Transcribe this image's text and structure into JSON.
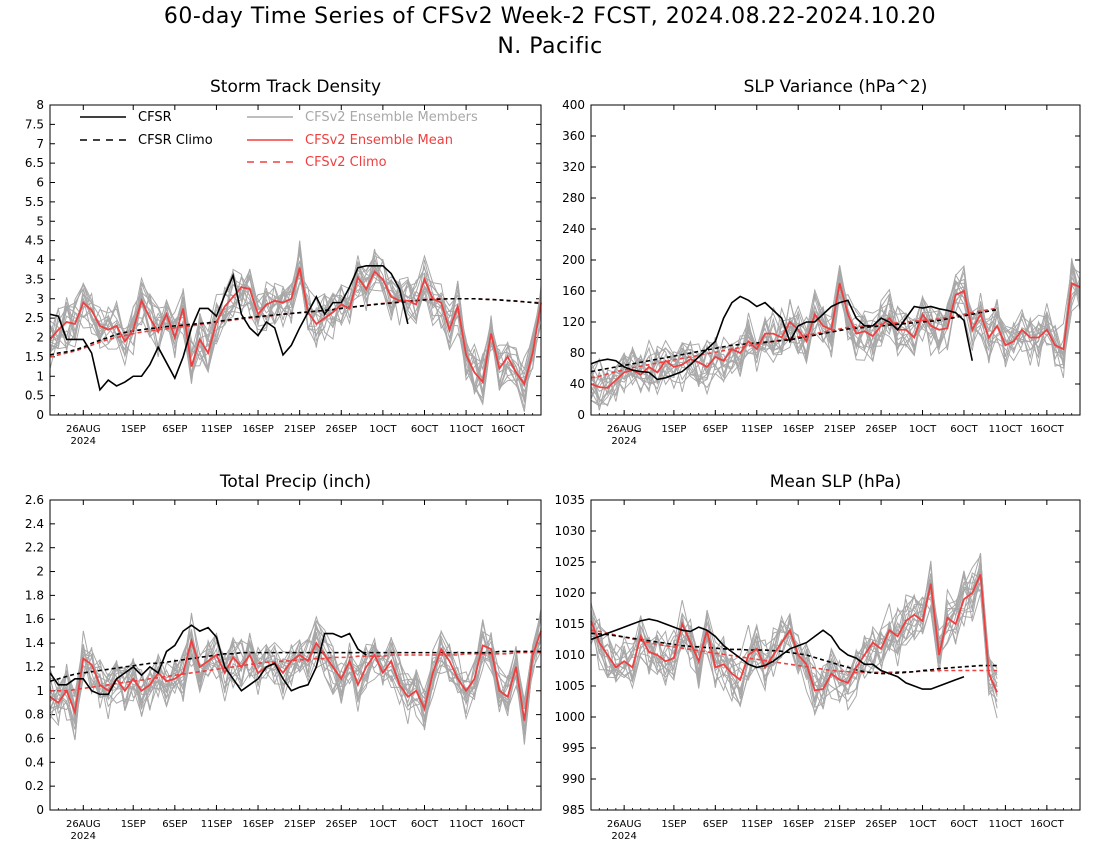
{
  "title_line1": "60-day Time Series of CFSv2 Week-2 FCST, 2024.08.22-2024.10.20",
  "title_line2": "N. Pacific",
  "colors": {
    "cfsr": "#000000",
    "cfsr_climo": "#000000",
    "members": "#a8a8a8",
    "ens_mean": "#ee4040",
    "cfsv2_climo": "#ee4040"
  },
  "legend": [
    {
      "label": "CFSR",
      "style": "solid",
      "color": "#000000"
    },
    {
      "label": "CFSR Climo",
      "style": "dashed",
      "color": "#000000"
    },
    {
      "label": "CFSv2 Ensemble Members",
      "style": "solid",
      "color": "#a8a8a8"
    },
    {
      "label": "CFSv2 Ensemble Mean",
      "style": "solid",
      "color": "#ee4040"
    },
    {
      "label": "CFSv2 Climo",
      "style": "dashed",
      "color": "#ee4040"
    }
  ],
  "x_ticks": [
    {
      "day": 4,
      "label": "26AUG",
      "sub": "2024"
    },
    {
      "day": 10,
      "label": "1SEP"
    },
    {
      "day": 15,
      "label": "6SEP"
    },
    {
      "day": 20,
      "label": "11SEP"
    },
    {
      "day": 25,
      "label": "16SEP"
    },
    {
      "day": 30,
      "label": "21SEP"
    },
    {
      "day": 35,
      "label": "26SEP"
    },
    {
      "day": 40,
      "label": "1OCT"
    },
    {
      "day": 45,
      "label": "6OCT"
    },
    {
      "day": 50,
      "label": "11OCT"
    },
    {
      "day": 55,
      "label": "16OCT"
    }
  ],
  "chart_data": [
    {
      "type": "line",
      "title": "Storm Track Density",
      "xlabel": "",
      "ylabel": "",
      "x_start": "2024-08-22",
      "x_end": "2024-10-20",
      "ylim": [
        0,
        8
      ],
      "yticks": [
        "0",
        "0.5",
        "1",
        "1.5",
        "2",
        "2.5",
        "3",
        "3.5",
        "4",
        "4.5",
        "5",
        "5.5",
        "6",
        "6.5",
        "7",
        "7.5",
        "8"
      ],
      "legend_position": "top",
      "series": [
        {
          "name": "CFSR",
          "values": [
            2.6,
            2.55,
            1.95,
            1.95,
            1.95,
            1.6,
            0.65,
            0.9,
            0.75,
            0.85,
            1.0,
            1.0,
            1.3,
            1.75,
            1.35,
            0.95,
            1.5,
            2.25,
            2.75,
            2.75,
            2.55,
            3.1,
            3.6,
            2.6,
            2.25,
            2.05,
            2.4,
            2.25,
            1.55,
            1.8,
            2.25,
            2.65,
            3.05,
            2.6,
            2.9,
            2.9,
            3.3,
            3.8,
            3.85,
            3.85,
            3.85,
            3.65,
            3.25,
            2.35
          ]
        },
        {
          "name": "CFSR Climo",
          "values": [
            1.55,
            1.6,
            1.63,
            1.68,
            1.75,
            1.85,
            1.93,
            2.0,
            2.08,
            2.13,
            2.17,
            2.2,
            2.23,
            2.25,
            2.28,
            2.3,
            2.32,
            2.34,
            2.36,
            2.38,
            2.41,
            2.44,
            2.47,
            2.5,
            2.52,
            2.54,
            2.56,
            2.58,
            2.6,
            2.62,
            2.64,
            2.66,
            2.68,
            2.7,
            2.72,
            2.75,
            2.78,
            2.8,
            2.83,
            2.85,
            2.87,
            2.89,
            2.91,
            2.93,
            2.95,
            2.97,
            2.98,
            2.99,
            3.0,
            3.0,
            3.0,
            3.0,
            2.99,
            2.98,
            2.97,
            2.95,
            2.94,
            2.92,
            2.9,
            2.88
          ]
        },
        {
          "name": "CFSv2 Ensemble Mean",
          "values": [
            1.95,
            2.2,
            2.4,
            2.35,
            2.9,
            2.7,
            2.3,
            2.2,
            2.3,
            1.9,
            2.2,
            2.95,
            2.5,
            2.15,
            2.6,
            2.0,
            2.75,
            1.25,
            1.95,
            1.6,
            2.4,
            2.8,
            3.05,
            3.3,
            3.25,
            2.6,
            2.85,
            2.95,
            2.9,
            3.0,
            3.8,
            2.65,
            2.35,
            2.5,
            2.65,
            2.85,
            2.75,
            3.55,
            3.25,
            3.7,
            3.5,
            3.05,
            2.95,
            2.95,
            2.85,
            3.5,
            3.0,
            2.9,
            2.2,
            2.8,
            1.55,
            1.1,
            0.85,
            2.1,
            1.2,
            1.5,
            1.1,
            0.8,
            1.6,
            2.9
          ]
        },
        {
          "name": "CFSv2 Climo",
          "values": [
            1.5,
            1.55,
            1.6,
            1.65,
            1.72,
            1.8,
            1.88,
            1.95,
            2.0,
            2.05,
            2.1,
            2.14,
            2.17,
            2.2,
            2.22,
            2.25,
            2.28,
            2.3,
            2.33,
            2.36,
            2.39,
            2.42,
            2.45,
            2.48,
            2.5,
            2.52,
            2.55,
            2.57,
            2.6,
            2.62,
            2.64,
            2.66,
            2.68,
            2.7,
            2.72,
            2.75,
            2.78,
            2.8,
            2.83,
            2.86,
            2.88,
            2.9,
            2.92,
            2.94,
            2.96,
            2.98,
            3.0,
            3.0,
            3.0,
            3.0,
            3.0,
            3.0,
            2.99,
            2.98,
            2.97,
            2.96,
            2.94,
            2.92,
            2.91,
            2.9
          ]
        }
      ]
    },
    {
      "type": "line",
      "title": "SLP Variance (hPa^2)",
      "xlabel": "",
      "ylabel": "",
      "x_start": "2024-08-22",
      "x_end": "2024-10-20",
      "ylim": [
        0,
        400
      ],
      "yticks": [
        "0",
        "40",
        "80",
        "120",
        "160",
        "200",
        "240",
        "280",
        "320",
        "360",
        "400"
      ],
      "series": [
        {
          "name": "CFSR",
          "values": [
            66,
            70,
            72,
            70,
            62,
            58,
            56,
            55,
            46,
            48,
            52,
            56,
            65,
            75,
            85,
            95,
            125,
            145,
            153,
            148,
            140,
            145,
            135,
            125,
            95,
            115,
            120,
            120,
            130,
            140,
            145,
            148,
            125,
            115,
            115,
            125,
            120,
            110,
            125,
            140,
            138,
            140,
            137,
            135,
            132,
            122,
            70
          ]
        },
        {
          "name": "CFSR Climo",
          "values": [
            56,
            58,
            60,
            62,
            64,
            66,
            68,
            70,
            72,
            74,
            76,
            78,
            80,
            82,
            84,
            86,
            88,
            90,
            91,
            92,
            93,
            94,
            95,
            96,
            97,
            99,
            101,
            103,
            105,
            107,
            109,
            111,
            112,
            113,
            114,
            115,
            116,
            117,
            118,
            119,
            120,
            121,
            122,
            124,
            126,
            128,
            130,
            132,
            134,
            136
          ]
        },
        {
          "name": "CFSv2 Ensemble Mean",
          "values": [
            40,
            36,
            35,
            45,
            55,
            58,
            52,
            62,
            55,
            70,
            62,
            65,
            72,
            68,
            62,
            75,
            70,
            85,
            80,
            95,
            85,
            105,
            105,
            100,
            120,
            110,
            95,
            130,
            115,
            110,
            170,
            130,
            105,
            108,
            102,
            115,
            125,
            110,
            110,
            100,
            130,
            115,
            110,
            112,
            155,
            160,
            110,
            130,
            100,
            115,
            90,
            95,
            110,
            100,
            100,
            110,
            90,
            85,
            170,
            165
          ]
        },
        {
          "name": "CFSv2 Climo",
          "values": [
            48,
            50,
            53,
            56,
            58,
            61,
            63,
            65,
            67,
            69,
            71,
            73,
            75,
            77,
            79,
            81,
            83,
            85,
            87,
            89,
            91,
            93,
            95,
            97,
            99,
            101,
            103,
            105,
            107,
            109,
            111,
            113,
            114,
            115,
            116,
            117,
            118,
            119,
            120,
            121,
            122,
            123,
            124,
            126,
            128,
            130,
            132,
            134,
            136,
            138
          ]
        }
      ]
    },
    {
      "type": "line",
      "title": "Total Precip (inch)",
      "xlabel": "",
      "ylabel": "",
      "x_start": "2024-08-22",
      "x_end": "2024-10-20",
      "ylim": [
        0,
        2.6
      ],
      "yticks": [
        "0",
        "0.2",
        "0.4",
        "0.6",
        "0.8",
        "1",
        "1.2",
        "1.4",
        "1.6",
        "1.8",
        "2",
        "2.2",
        "2.4",
        "2.6"
      ],
      "series": [
        {
          "name": "CFSR",
          "values": [
            1.15,
            1.05,
            1.05,
            1.1,
            1.1,
            1.0,
            0.97,
            0.97,
            1.1,
            1.15,
            1.2,
            1.13,
            1.2,
            1.15,
            1.33,
            1.38,
            1.5,
            1.55,
            1.5,
            1.53,
            1.45,
            1.2,
            1.1,
            1.0,
            1.05,
            1.1,
            1.2,
            1.23,
            1.1,
            1.0,
            1.03,
            1.05,
            1.2,
            1.48,
            1.48,
            1.45,
            1.48,
            1.35,
            1.3
          ]
        },
        {
          "name": "CFSR Climo",
          "values": [
            1.08,
            1.1,
            1.12,
            1.14,
            1.15,
            1.16,
            1.17,
            1.18,
            1.19,
            1.2,
            1.21,
            1.22,
            1.23,
            1.23,
            1.24,
            1.25,
            1.26,
            1.27,
            1.28,
            1.29,
            1.3,
            1.31,
            1.31,
            1.32,
            1.32,
            1.32,
            1.32,
            1.32,
            1.32,
            1.32,
            1.32,
            1.32,
            1.32,
            1.32,
            1.32,
            1.32,
            1.32,
            1.32,
            1.32,
            1.32,
            1.32,
            1.32,
            1.32,
            1.32,
            1.32,
            1.32,
            1.32,
            1.32,
            1.32,
            1.32,
            1.32,
            1.32,
            1.32,
            1.32,
            1.33,
            1.33,
            1.33,
            1.33,
            1.33,
            1.33
          ]
        },
        {
          "name": "CFSv2 Ensemble Mean",
          "values": [
            0.95,
            0.9,
            1.0,
            0.82,
            1.27,
            1.22,
            1.05,
            1.0,
            1.1,
            1.0,
            1.1,
            1.0,
            1.05,
            1.15,
            1.08,
            1.1,
            1.15,
            1.42,
            1.2,
            1.25,
            1.3,
            1.15,
            1.28,
            1.2,
            1.3,
            1.15,
            1.2,
            1.23,
            1.15,
            1.25,
            1.3,
            1.25,
            1.4,
            1.3,
            1.2,
            1.1,
            1.25,
            1.05,
            1.2,
            1.3,
            1.15,
            1.25,
            1.05,
            0.95,
            1.0,
            0.85,
            1.15,
            1.35,
            1.25,
            1.1,
            1.0,
            1.1,
            1.38,
            1.35,
            1.0,
            0.95,
            1.2,
            0.75,
            1.3,
            1.5
          ]
        },
        {
          "name": "CFSv2 Climo",
          "values": [
            1.0,
            1.0,
            1.0,
            1.01,
            1.02,
            1.03,
            1.04,
            1.05,
            1.06,
            1.07,
            1.08,
            1.09,
            1.1,
            1.11,
            1.12,
            1.13,
            1.14,
            1.15,
            1.16,
            1.17,
            1.18,
            1.19,
            1.2,
            1.21,
            1.22,
            1.23,
            1.24,
            1.24,
            1.25,
            1.25,
            1.26,
            1.26,
            1.27,
            1.27,
            1.28,
            1.28,
            1.28,
            1.29,
            1.29,
            1.29,
            1.29,
            1.3,
            1.3,
            1.3,
            1.3,
            1.3,
            1.3,
            1.3,
            1.3,
            1.3,
            1.31,
            1.31,
            1.31,
            1.31,
            1.31,
            1.31,
            1.32,
            1.32,
            1.32,
            1.32
          ]
        }
      ]
    },
    {
      "type": "line",
      "title": "Mean SLP (hPa)",
      "xlabel": "",
      "ylabel": "",
      "x_start": "2024-08-22",
      "x_end": "2024-10-20",
      "ylim": [
        985,
        1035
      ],
      "yticks": [
        "985",
        "990",
        "995",
        "1000",
        "1005",
        "1010",
        "1015",
        "1020",
        "1025",
        "1030",
        "1035"
      ],
      "series": [
        {
          "name": "CFSR",
          "values": [
            1012.5,
            1013,
            1013.5,
            1014,
            1014.5,
            1015,
            1015.5,
            1015.8,
            1015.5,
            1015,
            1014.5,
            1014,
            1013.8,
            1014.5,
            1014,
            1013,
            1011.5,
            1010.5,
            1009.5,
            1008.5,
            1008,
            1008.3,
            1009,
            1010,
            1011,
            1011.5,
            1012,
            1013,
            1014,
            1013,
            1011,
            1010,
            1009.5,
            1008.5,
            1008.5,
            1007.5,
            1007,
            1006.5,
            1005.5,
            1005,
            1004.5,
            1004.5,
            1005,
            1005.5,
            1006,
            1006.5
          ]
        },
        {
          "name": "CFSR Climo",
          "values": [
            1013.5,
            1013.4,
            1013.3,
            1013.1,
            1012.9,
            1012.7,
            1012.5,
            1012.3,
            1012.1,
            1011.9,
            1011.7,
            1011.5,
            1011.4,
            1011.3,
            1011.2,
            1011.1,
            1011,
            1010.9,
            1010.9,
            1010.8,
            1010.8,
            1010.8,
            1010.7,
            1010.6,
            1010.4,
            1010.2,
            1010,
            1009.6,
            1009.2,
            1008.8,
            1008.4,
            1008.0,
            1007.6,
            1007.3,
            1007.1,
            1007.0,
            1007.0,
            1007.1,
            1007.2,
            1007.3,
            1007.5,
            1007.6,
            1007.8,
            1007.9,
            1008.0,
            1008.1,
            1008.2,
            1008.3,
            1008.3,
            1008.3
          ]
        },
        {
          "name": "CFSv2 Ensemble Mean",
          "values": [
            1015.5,
            1012,
            1010,
            1008,
            1009,
            1008,
            1013,
            1010.5,
            1010,
            1009,
            1009.5,
            1015,
            1012,
            1009,
            1014,
            1008,
            1008.5,
            1007,
            1006,
            1010,
            1011,
            1008,
            1010,
            1012,
            1014,
            1010,
            1008.5,
            1004.3,
            1004.5,
            1007,
            1006,
            1005.5,
            1008,
            1010,
            1012,
            1011,
            1014,
            1013,
            1015.5,
            1016.5,
            1015.5,
            1021.5,
            1010,
            1016,
            1015,
            1019,
            1020,
            1023,
            1007,
            1004
          ]
        },
        {
          "name": "CFSv2 Climo",
          "values": [
            1014,
            1013.8,
            1013.5,
            1013.2,
            1012.9,
            1012.6,
            1012.3,
            1012,
            1011.7,
            1011.5,
            1011.3,
            1011.1,
            1010.9,
            1010.7,
            1010.5,
            1010.3,
            1010.1,
            1009.9,
            1009.7,
            1009.5,
            1009.3,
            1009.1,
            1008.9,
            1008.7,
            1008.5,
            1008.3,
            1008.1,
            1007.9,
            1007.7,
            1007.5,
            1007.4,
            1007.3,
            1007.2,
            1007.2,
            1007.2,
            1007.2,
            1007.2,
            1007.3,
            1007.3,
            1007.3,
            1007.4,
            1007.4,
            1007.5,
            1007.5,
            1007.5,
            1007.5,
            1007.5,
            1007.5,
            1007.5,
            1007.5
          ]
        }
      ]
    }
  ]
}
